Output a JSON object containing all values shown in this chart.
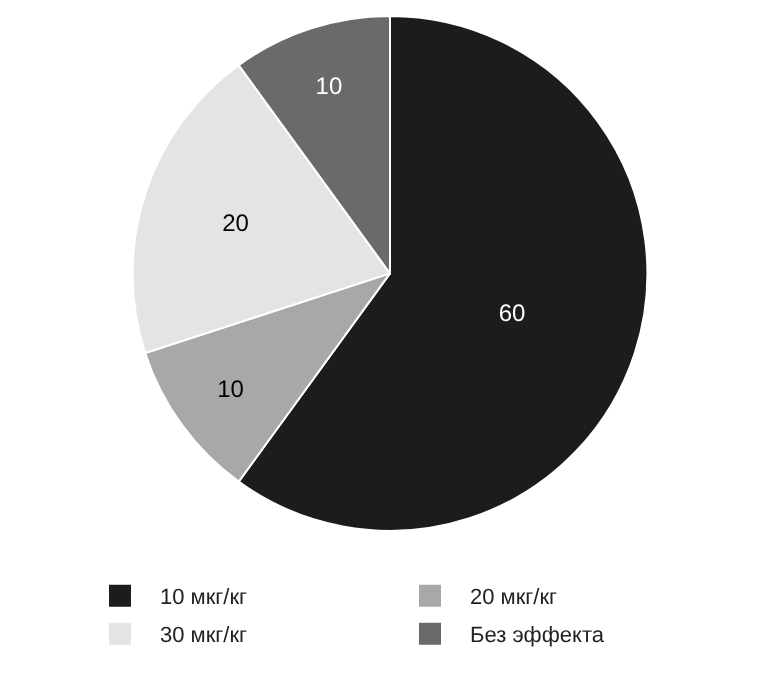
{
  "chart_data": {
    "type": "pie",
    "categories": [
      "10 мкг/кг",
      "20 мкг/кг",
      "30 мкг/кг",
      "Без эффекта"
    ],
    "values": [
      60,
      10,
      20,
      10
    ],
    "colors": [
      "#1c1c1c",
      "#a8a8a8",
      "#e4e4e4",
      "#6a6a6a"
    ],
    "data_labels": true,
    "legend": "bottom"
  }
}
